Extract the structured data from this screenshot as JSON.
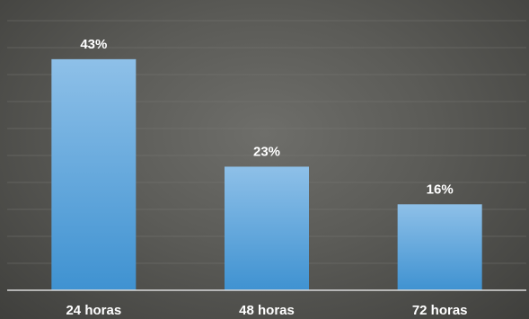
{
  "chart_data": {
    "type": "bar",
    "categories": [
      "24 horas",
      "48 horas",
      "72 horas"
    ],
    "values": [
      43,
      23,
      16
    ],
    "value_labels": [
      "43%",
      "23%",
      "16%"
    ],
    "title": "",
    "xlabel": "",
    "ylabel": "",
    "ylim": [
      0,
      50
    ],
    "grid": true,
    "legend": "none",
    "colors": {
      "bar_top": "#8ec0e8",
      "bar_bottom": "#3f92d1",
      "grid": "#7a7a76",
      "axis": "#d8d8d8",
      "text": "#ffffff"
    }
  }
}
